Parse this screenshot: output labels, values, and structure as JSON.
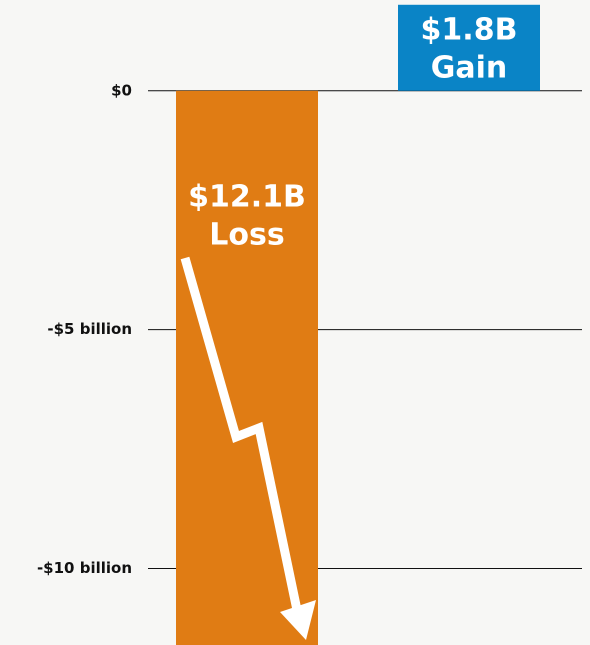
{
  "chart_data": {
    "type": "bar",
    "categories": [
      null,
      null
    ],
    "values": [
      -12.1,
      1.8
    ],
    "value_labels": [
      "$12.1B",
      "$1.8B"
    ],
    "value_captions": [
      "Loss",
      "Gain"
    ],
    "colors": [
      "#e07c14",
      "#0a84c6"
    ],
    "ylim": [
      -11.6,
      1.9
    ],
    "yticks": [
      {
        "value": 0,
        "label": "$0"
      },
      {
        "value": -5,
        "label": "-$5 billion"
      },
      {
        "value": -10,
        "label": "-$10 billion"
      }
    ],
    "grid": true
  }
}
